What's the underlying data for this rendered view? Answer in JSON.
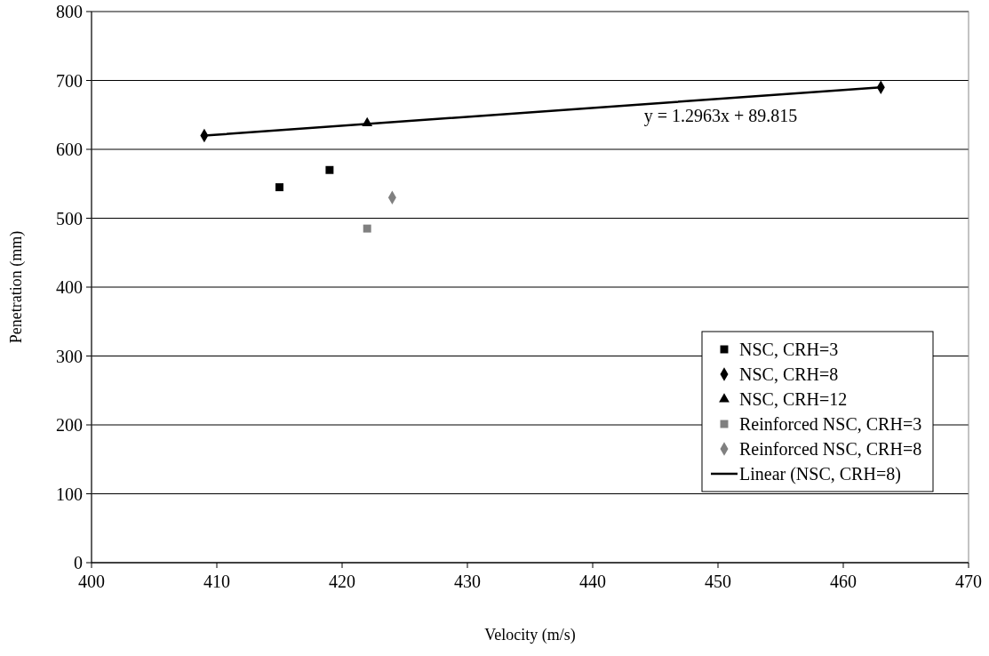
{
  "chart_data": {
    "type": "scatter",
    "xlabel": "Velocity (m/s)",
    "ylabel": "Penetration (mm)",
    "xlim": [
      400,
      470
    ],
    "xticks": [
      400,
      410,
      420,
      430,
      440,
      450,
      460,
      470
    ],
    "ylim": [
      0,
      800
    ],
    "yticks": [
      0,
      100,
      200,
      300,
      400,
      500,
      600,
      700,
      800
    ],
    "grid": "y",
    "legend": "bottom right",
    "series": [
      {
        "name": "NSC, CRH=3",
        "color": "#000000",
        "marker": "square",
        "x": [
          415,
          419
        ],
        "values": [
          545,
          570
        ]
      },
      {
        "name": "NSC, CRH=8",
        "color": "#000000",
        "marker": "diamond",
        "x": [
          409,
          463
        ],
        "values": [
          620,
          690
        ]
      },
      {
        "name": "NSC, CRH=12",
        "color": "#000000",
        "marker": "triangle",
        "x": [
          422
        ],
        "values": [
          638
        ]
      },
      {
        "name": "Reinforced NSC, CRH=3",
        "color": "#808080",
        "marker": "square",
        "x": [
          422
        ],
        "values": [
          485
        ]
      },
      {
        "name": "Reinforced NSC, CRH=8",
        "color": "#808080",
        "marker": "diamond",
        "x": [
          424
        ],
        "values": [
          530
        ]
      },
      {
        "name": "Linear (NSC, CRH=8)",
        "type": "line",
        "color": "#000000",
        "marker": "none",
        "line_style": "solid",
        "x": [
          409,
          463
        ],
        "values": [
          620,
          690
        ]
      }
    ],
    "annotations": [
      "y = 1.2963x + 89.815"
    ]
  }
}
